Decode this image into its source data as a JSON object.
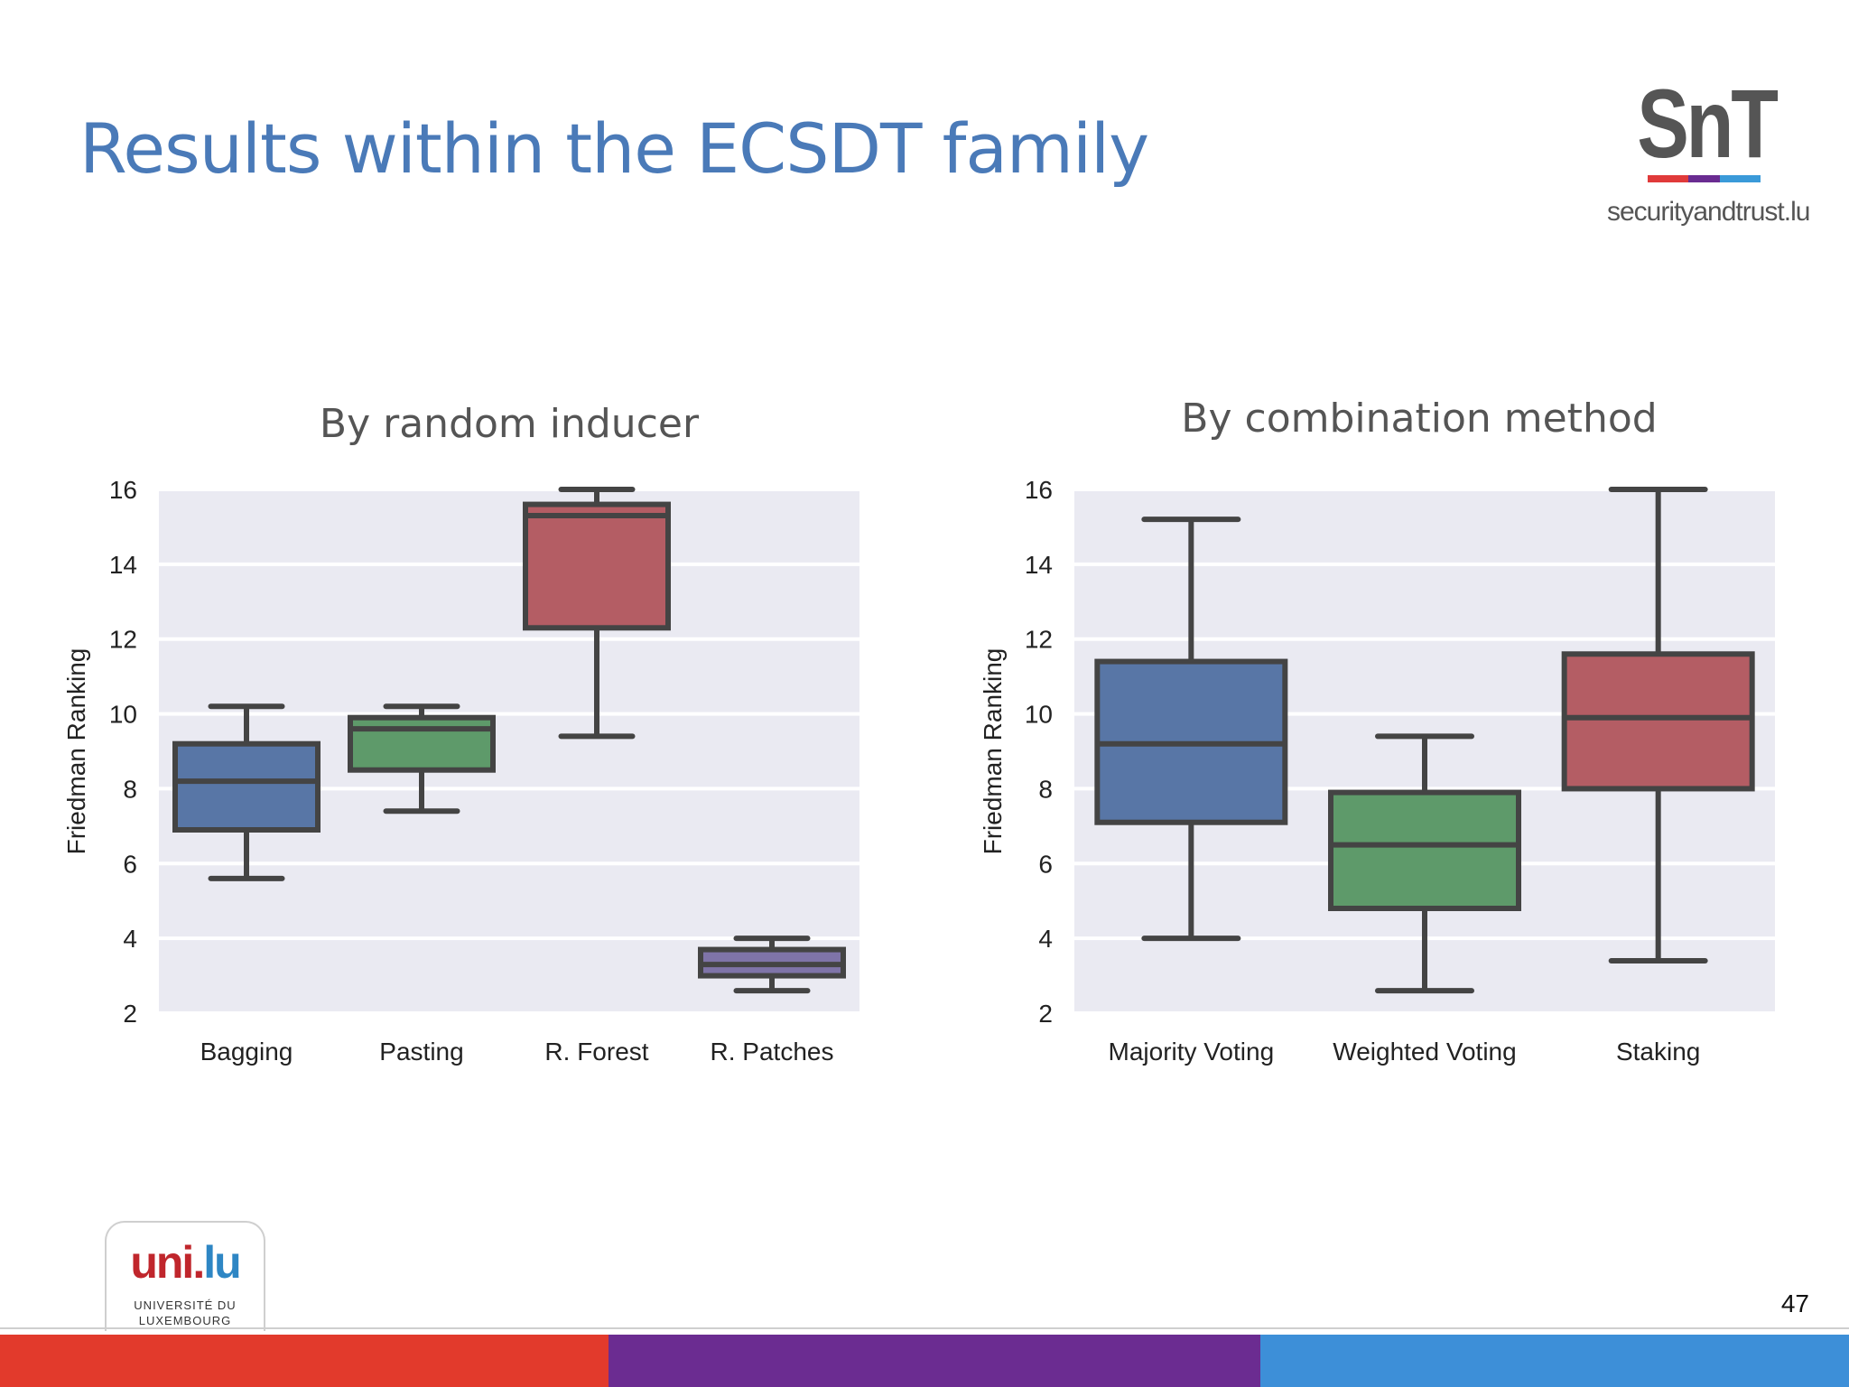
{
  "slide": {
    "title": "Results within the ECSDT family",
    "page_number": "47"
  },
  "logos": {
    "snt": {
      "letters": "SnT",
      "domain": "securityandtrust.lu",
      "bar_colors": [
        "#e03a3a",
        "#6a2c91",
        "#3a9ad9"
      ]
    },
    "uni": {
      "mark_left": "uni.",
      "mark_right": "lu",
      "line1": "UNIVERSITÉ DU",
      "line2": "LUXEMBOURG"
    }
  },
  "footer": {
    "band_colors": [
      "#e23a2c",
      "#6b2c91",
      "#3d8fd8"
    ]
  },
  "chart_data": [
    {
      "type": "box",
      "title": "By random inducer",
      "ylabel": "Friedman Ranking",
      "xlabel": "",
      "ylim": [
        2,
        16
      ],
      "yticks": [
        2,
        4,
        6,
        8,
        10,
        12,
        14,
        16
      ],
      "grid": true,
      "categories": [
        "Bagging",
        "Pasting",
        "R. Forest",
        "R. Patches"
      ],
      "boxes": [
        {
          "min": 5.6,
          "q1": 6.9,
          "median": 8.2,
          "q3": 9.2,
          "max": 10.2,
          "color": "#5876a6"
        },
        {
          "min": 7.4,
          "q1": 8.5,
          "median": 9.6,
          "q3": 9.9,
          "max": 10.2,
          "color": "#5e9a6a"
        },
        {
          "min": 9.4,
          "q1": 12.3,
          "median": 15.3,
          "q3": 15.6,
          "max": 16.0,
          "color": "#b45d64"
        },
        {
          "min": 2.6,
          "q1": 3.0,
          "median": 3.3,
          "q3": 3.7,
          "max": 4.0,
          "color": "#7f74a8"
        }
      ]
    },
    {
      "type": "box",
      "title": "By combination method",
      "ylabel": "Friedman Ranking",
      "xlabel": "",
      "ylim": [
        2,
        16
      ],
      "yticks": [
        2,
        4,
        6,
        8,
        10,
        12,
        14,
        16
      ],
      "grid": true,
      "categories": [
        "Majority Voting",
        "Weighted Voting",
        "Staking"
      ],
      "boxes": [
        {
          "min": 4.0,
          "q1": 7.1,
          "median": 9.2,
          "q3": 11.4,
          "max": 15.2,
          "color": "#5876a6"
        },
        {
          "min": 2.6,
          "q1": 4.8,
          "median": 6.5,
          "q3": 7.9,
          "max": 9.4,
          "color": "#5e9a6a"
        },
        {
          "min": 3.4,
          "q1": 8.0,
          "median": 9.9,
          "q3": 11.6,
          "max": 16.0,
          "color": "#b45d64"
        }
      ]
    }
  ]
}
